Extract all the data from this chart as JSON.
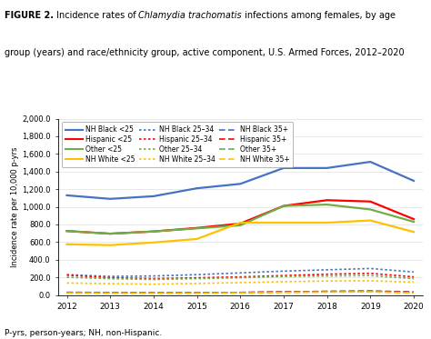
{
  "years": [
    2012,
    2013,
    2014,
    2015,
    2016,
    2017,
    2018,
    2019,
    2020
  ],
  "series": {
    "NH_Black_lt25": [
      1130,
      1090,
      1120,
      1210,
      1260,
      1440,
      1440,
      1510,
      1295
    ],
    "Hispanic_lt25": [
      725,
      695,
      720,
      760,
      810,
      1010,
      1075,
      1060,
      860
    ],
    "Other_lt25": [
      725,
      695,
      720,
      755,
      790,
      1010,
      1025,
      970,
      830
    ],
    "NHWhite_lt25": [
      575,
      565,
      595,
      635,
      820,
      820,
      820,
      845,
      715
    ],
    "NH_Black_25_34": [
      230,
      210,
      215,
      230,
      250,
      270,
      285,
      300,
      260
    ],
    "Hispanic_25_34": [
      225,
      195,
      185,
      195,
      205,
      220,
      235,
      245,
      205
    ],
    "Other_25_34": [
      200,
      185,
      175,
      185,
      195,
      210,
      215,
      220,
      185
    ],
    "NHWhite_25_34": [
      135,
      128,
      122,
      130,
      140,
      150,
      158,
      160,
      145
    ],
    "NH_Black_35p": [
      30,
      28,
      27,
      27,
      28,
      35,
      40,
      45,
      35
    ],
    "Hispanic_35p": [
      28,
      25,
      25,
      25,
      28,
      35,
      40,
      42,
      30
    ],
    "Other_35p": [
      25,
      22,
      22,
      22,
      26,
      32,
      35,
      38,
      25
    ],
    "NHWhite_35p": [
      22,
      20,
      20,
      20,
      22,
      28,
      32,
      35,
      22
    ]
  },
  "colors": {
    "blue": "#4472C4",
    "red": "#FF0000",
    "green": "#70AD47",
    "yellow": "#FFC000"
  },
  "ylim": [
    0,
    2000
  ],
  "yticks": [
    0,
    200,
    400,
    600,
    800,
    1000,
    1200,
    1400,
    1600,
    1800,
    2000
  ],
  "ylabel": "Incidence rate per 10,000 p-yrs",
  "footnote": "P-yrs, person-years; NH, non-Hispanic."
}
